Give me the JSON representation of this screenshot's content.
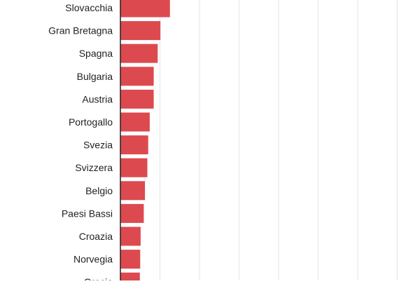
{
  "chart_data": {
    "type": "bar",
    "orientation": "horizontal",
    "categories": [
      "Slovacchia",
      "Gran Bretagna",
      "Spagna",
      "Bulgaria",
      "Austria",
      "Portogallo",
      "Svezia",
      "Svizzera",
      "Belgio",
      "Paesi Bassi",
      "Croazia",
      "Norvegia",
      "Grecia"
    ],
    "values": [
      12.5,
      10.1,
      9.4,
      8.4,
      8.4,
      7.4,
      7.0,
      6.8,
      6.2,
      5.9,
      5.1,
      5.0,
      4.9
    ],
    "xlim": [
      0,
      75
    ],
    "grid": true,
    "title": "",
    "xlabel": "",
    "ylabel": "",
    "colors": {
      "bar": "#dc4a4f",
      "grid": "#e4e4e4",
      "axis": "#222222",
      "label": "#222222"
    }
  }
}
